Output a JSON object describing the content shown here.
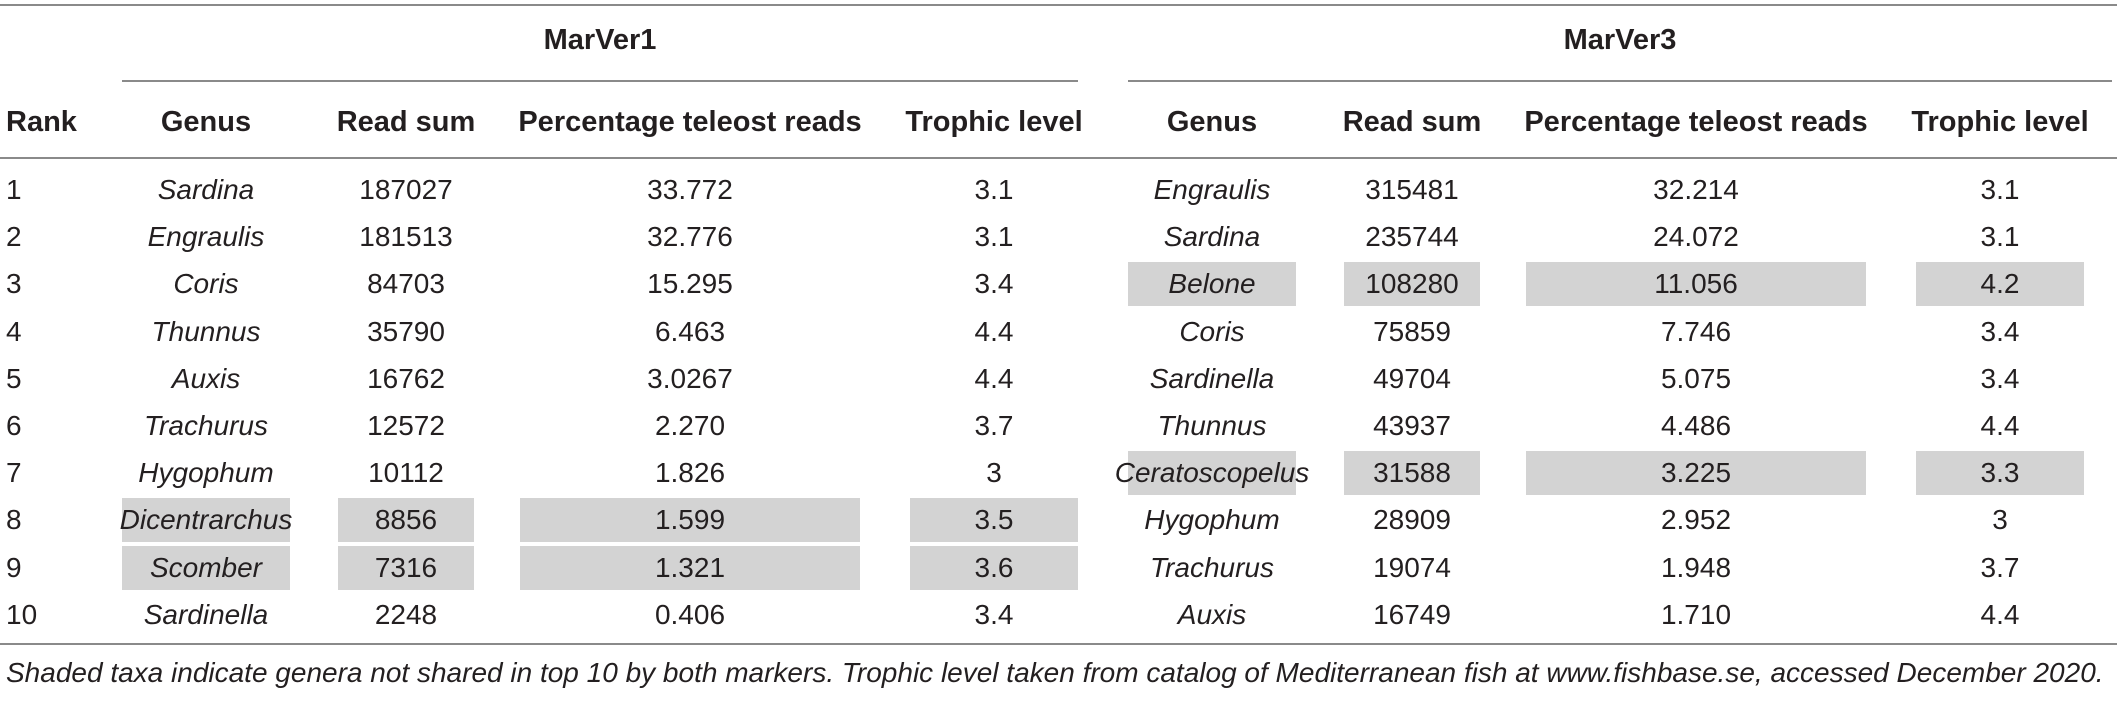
{
  "groups": {
    "marver1": "MarVer1",
    "marver3": "MarVer3"
  },
  "columns": {
    "rank": "Rank",
    "genus": "Genus",
    "read_sum": "Read sum",
    "percentage": "Percentage teleost reads",
    "trophic": "Trophic level"
  },
  "rows": [
    {
      "rank": "1",
      "m1": {
        "genus": "Sardina",
        "read_sum": "187027",
        "percentage": "33.772",
        "trophic": "3.1",
        "shaded": false
      },
      "m3": {
        "genus": "Engraulis",
        "read_sum": "315481",
        "percentage": "32.214",
        "trophic": "3.1",
        "shaded": false
      }
    },
    {
      "rank": "2",
      "m1": {
        "genus": "Engraulis",
        "read_sum": "181513",
        "percentage": "32.776",
        "trophic": "3.1",
        "shaded": false
      },
      "m3": {
        "genus": "Sardina",
        "read_sum": "235744",
        "percentage": "24.072",
        "trophic": "3.1",
        "shaded": false
      }
    },
    {
      "rank": "3",
      "m1": {
        "genus": "Coris",
        "read_sum": "84703",
        "percentage": "15.295",
        "trophic": "3.4",
        "shaded": false
      },
      "m3": {
        "genus": "Belone",
        "read_sum": "108280",
        "percentage": "11.056",
        "trophic": "4.2",
        "shaded": true
      }
    },
    {
      "rank": "4",
      "m1": {
        "genus": "Thunnus",
        "read_sum": "35790",
        "percentage": "6.463",
        "trophic": "4.4",
        "shaded": false
      },
      "m3": {
        "genus": "Coris",
        "read_sum": "75859",
        "percentage": "7.746",
        "trophic": "3.4",
        "shaded": false
      }
    },
    {
      "rank": "5",
      "m1": {
        "genus": "Auxis",
        "read_sum": "16762",
        "percentage": "3.0267",
        "trophic": "4.4",
        "shaded": false
      },
      "m3": {
        "genus": "Sardinella",
        "read_sum": "49704",
        "percentage": "5.075",
        "trophic": "3.4",
        "shaded": false
      }
    },
    {
      "rank": "6",
      "m1": {
        "genus": "Trachurus",
        "read_sum": "12572",
        "percentage": "2.270",
        "trophic": "3.7",
        "shaded": false
      },
      "m3": {
        "genus": "Thunnus",
        "read_sum": "43937",
        "percentage": "4.486",
        "trophic": "4.4",
        "shaded": false
      }
    },
    {
      "rank": "7",
      "m1": {
        "genus": "Hygophum",
        "read_sum": "10112",
        "percentage": "1.826",
        "trophic": "3",
        "shaded": false
      },
      "m3": {
        "genus": "Ceratoscopelus",
        "read_sum": "31588",
        "percentage": "3.225",
        "trophic": "3.3",
        "shaded": true
      }
    },
    {
      "rank": "8",
      "m1": {
        "genus": "Dicentrarchus",
        "read_sum": "8856",
        "percentage": "1.599",
        "trophic": "3.5",
        "shaded": true
      },
      "m3": {
        "genus": "Hygophum",
        "read_sum": "28909",
        "percentage": "2.952",
        "trophic": "3",
        "shaded": false
      }
    },
    {
      "rank": "9",
      "m1": {
        "genus": "Scomber",
        "read_sum": "7316",
        "percentage": "1.321",
        "trophic": "3.6",
        "shaded": true
      },
      "m3": {
        "genus": "Trachurus",
        "read_sum": "19074",
        "percentage": "1.948",
        "trophic": "3.7",
        "shaded": false
      }
    },
    {
      "rank": "10",
      "m1": {
        "genus": "Sardinella",
        "read_sum": "2248",
        "percentage": "0.406",
        "trophic": "3.4",
        "shaded": false
      },
      "m3": {
        "genus": "Auxis",
        "read_sum": "16749",
        "percentage": "1.710",
        "trophic": "4.4",
        "shaded": false
      }
    }
  ],
  "footnote": "Shaded taxa indicate genera not shared in top 10 by both markers. Trophic level taken from catalog of Mediterranean fish at www.fishbase.se, accessed December 2020."
}
